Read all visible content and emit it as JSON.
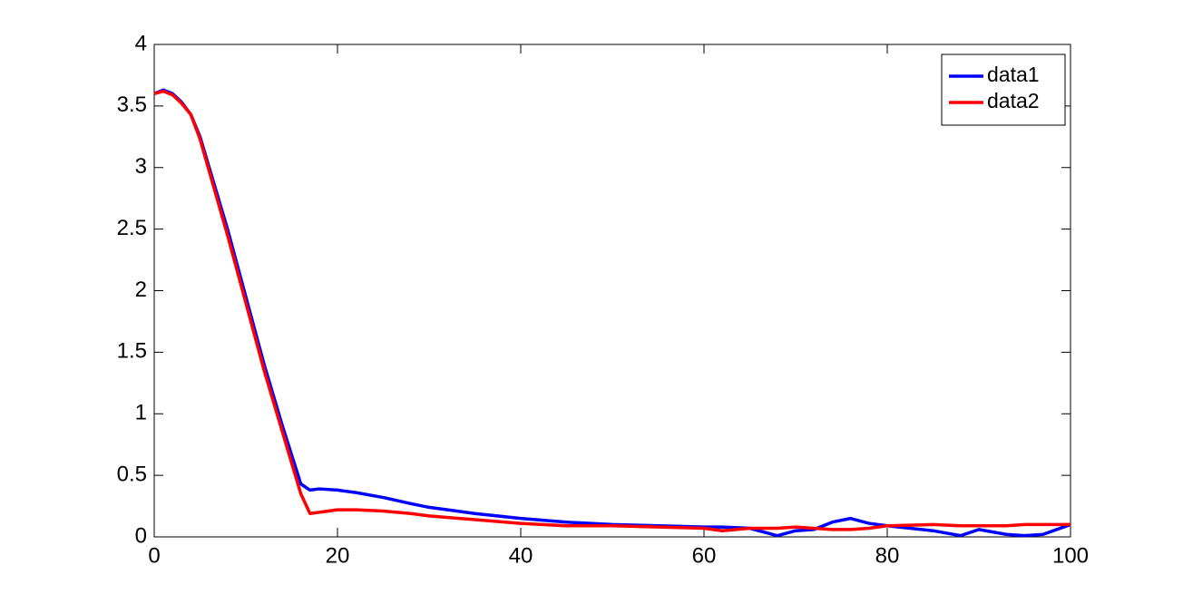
{
  "chart_data": {
    "type": "line",
    "x": [
      0,
      1,
      2,
      3,
      4,
      5,
      6,
      8,
      10,
      12,
      14,
      16,
      17,
      18,
      20,
      22,
      25,
      28,
      30,
      35,
      40,
      45,
      50,
      55,
      60,
      62,
      65,
      68,
      70,
      72,
      74,
      76,
      78,
      80,
      85,
      88,
      90,
      93,
      95,
      97,
      100
    ],
    "series": [
      {
        "name": "data1",
        "color": "#0000ff",
        "values": [
          3.6,
          3.63,
          3.6,
          3.53,
          3.43,
          3.25,
          3.0,
          2.5,
          1.95,
          1.4,
          0.9,
          0.43,
          0.38,
          0.39,
          0.38,
          0.36,
          0.32,
          0.27,
          0.24,
          0.19,
          0.15,
          0.12,
          0.1,
          0.09,
          0.08,
          0.08,
          0.07,
          0.01,
          0.05,
          0.06,
          0.12,
          0.15,
          0.11,
          0.09,
          0.05,
          0.01,
          0.06,
          0.02,
          0.01,
          0.02,
          0.1
        ]
      },
      {
        "name": "data2",
        "color": "#ff0000",
        "values": [
          3.6,
          3.62,
          3.59,
          3.52,
          3.43,
          3.23,
          2.97,
          2.45,
          1.9,
          1.35,
          0.85,
          0.35,
          0.19,
          0.2,
          0.22,
          0.22,
          0.21,
          0.19,
          0.17,
          0.14,
          0.11,
          0.09,
          0.09,
          0.08,
          0.07,
          0.05,
          0.07,
          0.07,
          0.08,
          0.07,
          0.06,
          0.06,
          0.07,
          0.09,
          0.1,
          0.09,
          0.09,
          0.09,
          0.1,
          0.1,
          0.1
        ]
      }
    ],
    "xlim": [
      0,
      100
    ],
    "xticks": [
      0,
      20,
      40,
      60,
      80,
      100
    ],
    "ylim": [
      0,
      4
    ],
    "yticks": [
      0,
      0.5,
      1,
      1.5,
      2,
      2.5,
      3,
      3.5,
      4
    ],
    "grid": false,
    "legend": "northeast"
  }
}
